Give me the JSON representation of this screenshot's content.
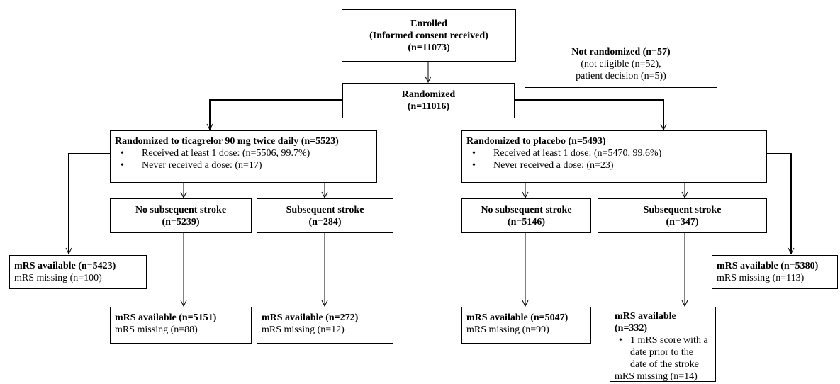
{
  "enrolled": {
    "title": "Enrolled",
    "subtitle": "(Informed consent received)",
    "n": "(n=11073)"
  },
  "not_randomized": {
    "title": "Not randomized (n=57)",
    "line1": "(not eligible (n=52),",
    "line2": "patient decision (n=5))"
  },
  "randomized": {
    "title": "Randomized",
    "n": "(n=11016)"
  },
  "ticagrelor_arm": {
    "title": "Randomized to ticagrelor 90 mg twice daily (n=5523)",
    "bullets": [
      "Received at least 1 dose: (n=5506, 99.7%)",
      "Never received a dose: (n=17)"
    ]
  },
  "placebo_arm": {
    "title": "Randomized to placebo (n=5493)",
    "bullets": [
      "Received at least 1 dose: (n=5470, 99.6%)",
      "Never received a dose: (n=23)"
    ]
  },
  "tic_no_stroke": {
    "title": "No subsequent stroke",
    "n": "(n=5239)"
  },
  "tic_stroke": {
    "title": "Subsequent stroke",
    "n": "(n=284)"
  },
  "pla_no_stroke": {
    "title": "No subsequent stroke",
    "n": "(n=5146)"
  },
  "pla_stroke": {
    "title": "Subsequent stroke",
    "n": "(n=347)"
  },
  "tic_overall_mrs": {
    "available": "mRS available (n=5423)",
    "missing": "mRS missing (n=100)"
  },
  "pla_overall_mrs": {
    "available": "mRS available (n=5380)",
    "missing": "mRS missing (n=113)"
  },
  "tic_no_stroke_mrs": {
    "available": "mRS available (n=5151)",
    "missing": "mRS missing (n=88)"
  },
  "tic_stroke_mrs": {
    "available": "mRS available (n=272)",
    "missing": "mRS missing (n=12)"
  },
  "pla_no_stroke_mrs": {
    "available": "mRS available (n=5047)",
    "missing": "mRS missing (n=99)"
  },
  "pla_stroke_mrs": {
    "available": "mRS available (n=332)",
    "bullet": "1 mRS score with a date prior to the date of the stroke",
    "missing": "mRS missing (n=14)"
  }
}
